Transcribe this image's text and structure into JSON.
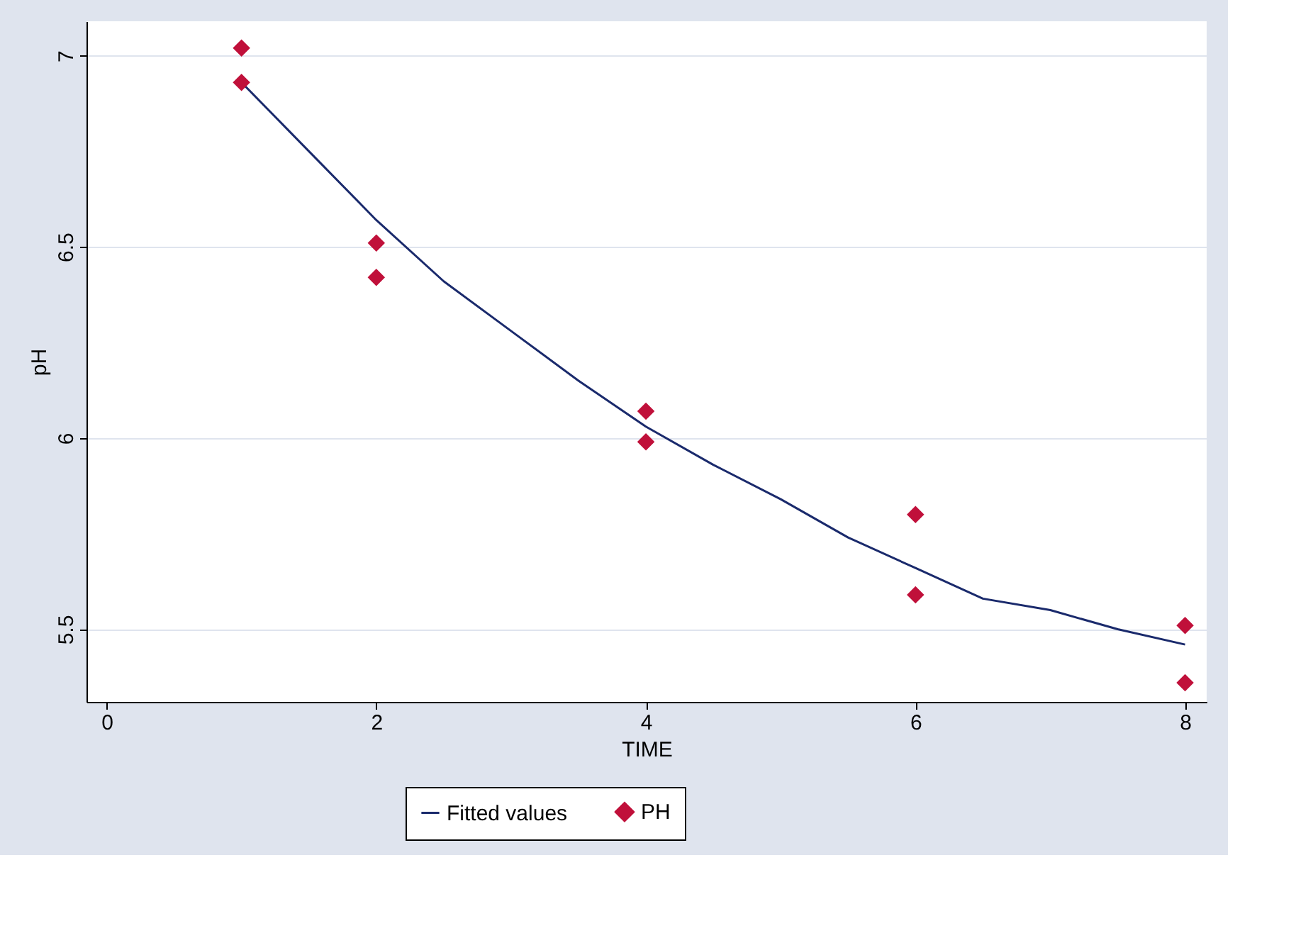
{
  "chart_data": {
    "type": "scatter",
    "xlabel": "TIME",
    "ylabel": "pH",
    "xlim": [
      -0.15,
      8.16
    ],
    "ylim": [
      5.31,
      7.09
    ],
    "xticks": [
      0,
      2,
      4,
      6,
      8
    ],
    "yticks": [
      5.5,
      6,
      6.5,
      7
    ],
    "grid": "y",
    "legend": "bottom",
    "series": [
      {
        "name": "Fitted values",
        "type": "line",
        "color": "#1a2a6c",
        "marker": "none",
        "line_style": "solid",
        "x": [
          1,
          1.5,
          2,
          2.5,
          3,
          3.5,
          4,
          4.5,
          5,
          5.5,
          6,
          6.5,
          7,
          7.5,
          8
        ],
        "values": [
          6.93,
          6.75,
          6.57,
          6.41,
          6.28,
          6.15,
          6.03,
          5.93,
          5.84,
          5.74,
          5.66,
          5.58,
          5.55,
          5.5,
          5.46
        ]
      },
      {
        "name": "PH",
        "color": "#c0103a",
        "marker": "diamond",
        "x": [
          1,
          1,
          2,
          2,
          4,
          4,
          6,
          6,
          8,
          8
        ],
        "values": [
          7.02,
          6.93,
          6.51,
          6.42,
          6.07,
          5.99,
          5.8,
          5.59,
          5.51,
          5.36
        ]
      }
    ]
  }
}
